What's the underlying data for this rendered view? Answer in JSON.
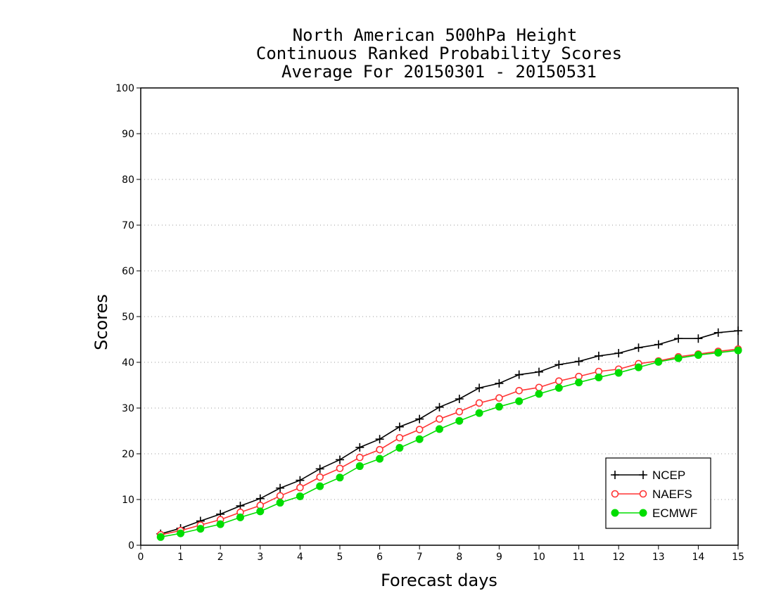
{
  "chart_data": {
    "type": "line",
    "title_lines": [
      "North American 500hPa Height",
      "Continuous Ranked Probability Scores",
      "Average For 20150301 - 20150531"
    ],
    "xlabel": "Forecast days",
    "ylabel": "Scores",
    "xlim": [
      0,
      15
    ],
    "ylim": [
      0,
      100
    ],
    "xticks": [
      "0",
      "1",
      "2",
      "3",
      "4",
      "5",
      "6",
      "7",
      "8",
      "9",
      "10",
      "11",
      "12",
      "13",
      "14",
      "15"
    ],
    "yticks": [
      "0",
      "10",
      "20",
      "30",
      "40",
      "50",
      "60",
      "70",
      "80",
      "90",
      "100"
    ],
    "grid": "horizontal dotted",
    "legend_position": "bottom-right",
    "x": [
      0.5,
      1,
      1.5,
      2,
      2.5,
      3,
      3.5,
      4,
      4.5,
      5,
      5.5,
      6,
      6.5,
      7,
      7.5,
      8,
      8.5,
      9,
      9.5,
      10,
      10.5,
      11,
      11.5,
      12,
      12.5,
      13,
      13.5,
      14,
      14.5,
      15
    ],
    "series": [
      {
        "name": "NCEP",
        "color": "#000000",
        "marker": "plus",
        "values": [
          2.5,
          3.7,
          5.3,
          6.8,
          8.6,
          10.2,
          12.5,
          14.2,
          16.7,
          18.7,
          21.4,
          23.2,
          25.9,
          27.6,
          30.2,
          32.0,
          34.4,
          35.4,
          37.3,
          37.9,
          39.5,
          40.2,
          41.4,
          42.0,
          43.2,
          43.9,
          45.2,
          45.2,
          46.5,
          46.9
        ]
      },
      {
        "name": "NAEFS",
        "color": "#ff3333",
        "marker": "open-circle",
        "values": [
          2.3,
          3.2,
          4.4,
          5.6,
          7.2,
          8.7,
          10.8,
          12.6,
          14.9,
          16.8,
          19.2,
          20.9,
          23.5,
          25.3,
          27.6,
          29.2,
          31.1,
          32.2,
          33.8,
          34.5,
          35.9,
          36.9,
          38.0,
          38.5,
          39.7,
          40.3,
          41.2,
          41.8,
          42.4,
          42.9
        ]
      },
      {
        "name": "ECMWF",
        "color": "#00dd00",
        "marker": "filled-circle",
        "values": [
          1.8,
          2.6,
          3.6,
          4.6,
          6.1,
          7.4,
          9.3,
          10.7,
          12.9,
          14.8,
          17.3,
          18.9,
          21.3,
          23.2,
          25.4,
          27.2,
          28.9,
          30.3,
          31.5,
          33.1,
          34.4,
          35.6,
          36.7,
          37.7,
          38.9,
          40.1,
          40.9,
          41.6,
          42.1,
          42.6
        ]
      }
    ]
  }
}
